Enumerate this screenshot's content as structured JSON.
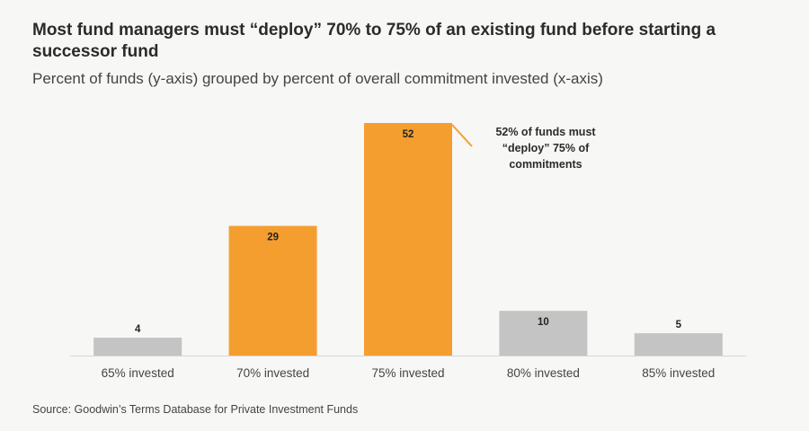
{
  "header": {
    "title": "Most fund managers must “deploy” 70% to 75% of an existing fund before starting a successor fund",
    "subtitle": "Percent of funds (y-axis) grouped by percent of overall commitment invested (x-axis)"
  },
  "footer": {
    "source": "Source: Goodwin’s Terms Database for Private Investment Funds"
  },
  "colors": {
    "highlight": "#f59e30",
    "muted": "#c4c4c4",
    "axis": "#d6d6d6",
    "background": "#f7f7f6"
  },
  "chart_data": {
    "type": "bar",
    "title": "Most fund managers must “deploy” 70% to 75% of an existing fund before starting a successor fund",
    "subtitle": "Percent of funds (y-axis) grouped by percent of overall commitment invested (x-axis)",
    "xlabel": "",
    "ylabel": "",
    "categories": [
      "65% invested",
      "70% invested",
      "75% invested",
      "80% invested",
      "85% invested"
    ],
    "values": [
      4,
      29,
      52,
      10,
      5
    ],
    "highlighted": [
      false,
      true,
      true,
      false,
      false
    ],
    "ylim": [
      0,
      52
    ],
    "grid": false,
    "annotation": {
      "target_index": 2,
      "lines": [
        "52% of funds must",
        "“deploy” 75% of",
        "commitments"
      ]
    }
  }
}
